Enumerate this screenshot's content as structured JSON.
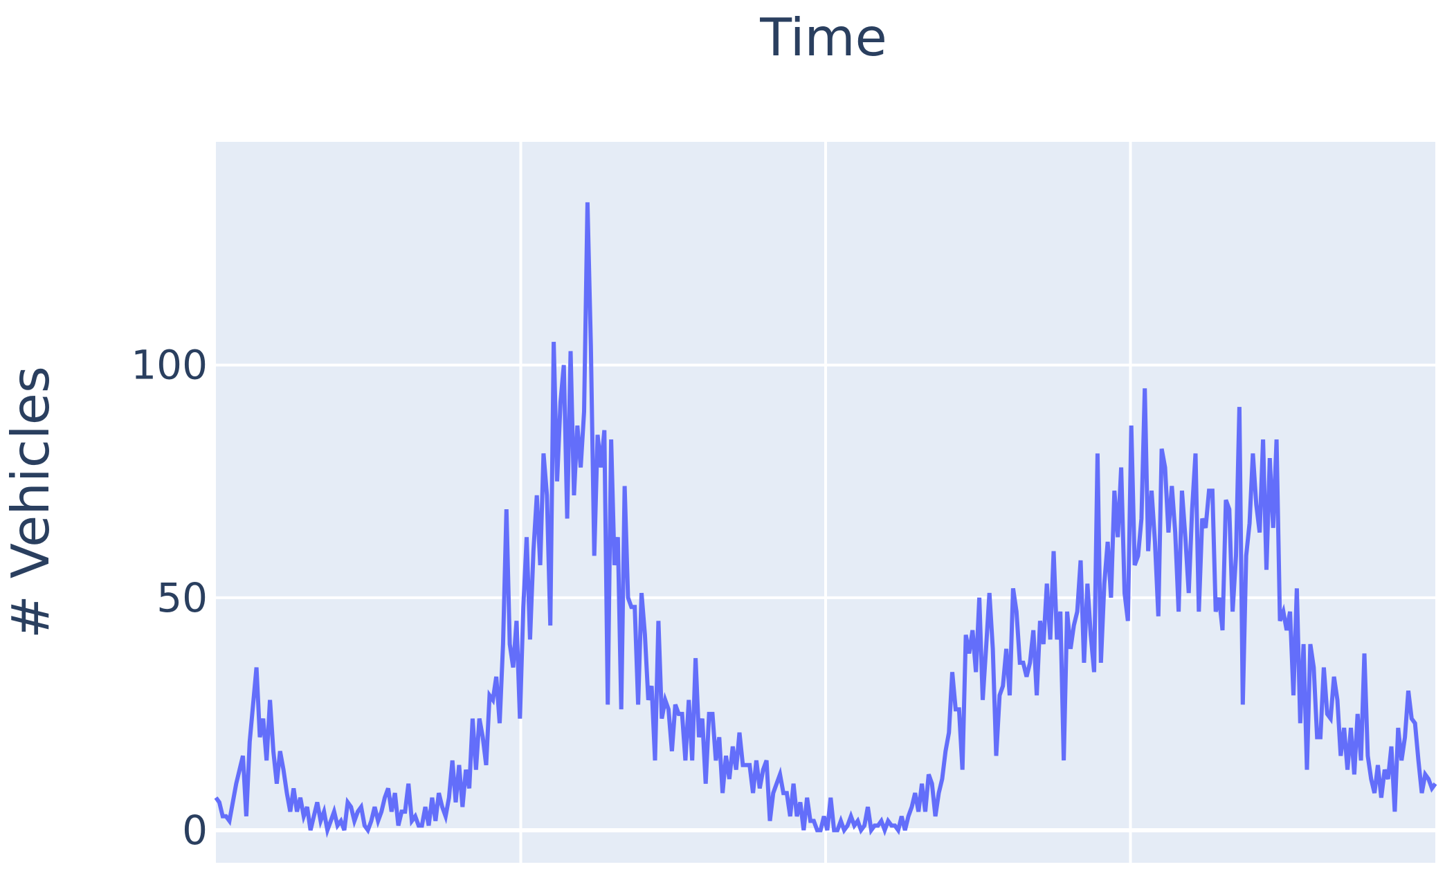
{
  "chart_data": {
    "type": "line",
    "title": "",
    "xlabel": "Time",
    "ylabel": "# Vehicles",
    "x_axis_position": "top",
    "x_tick_labels_shown": false,
    "ylim": [
      -7,
      148
    ],
    "yticks": [
      0,
      50,
      100
    ],
    "ytick_labels": [
      "0",
      "50",
      "100"
    ],
    "grid": true,
    "colors": {
      "line": "#636efa",
      "plot_background": "#e5ecf6",
      "grid": "#ffffff",
      "text": "#2a3f5f"
    },
    "series": [
      {
        "values": [
          7,
          6,
          3,
          3,
          2,
          6,
          10,
          13,
          16,
          3,
          19,
          27,
          35,
          20,
          24,
          15,
          28,
          17,
          10,
          17,
          13,
          8,
          4,
          9,
          4,
          7,
          3,
          5,
          0,
          3,
          6,
          2,
          4,
          0,
          2,
          4,
          1,
          2,
          0,
          6,
          5,
          2,
          4,
          5,
          1,
          0,
          2,
          5,
          2,
          4,
          7,
          9,
          4,
          8,
          1,
          4,
          4,
          10,
          2,
          3,
          1,
          1,
          5,
          1,
          7,
          2,
          8,
          5,
          3,
          7,
          15,
          6,
          14,
          5,
          13,
          9,
          24,
          13,
          24,
          20,
          14,
          29,
          28,
          33,
          23,
          40,
          69,
          40,
          35,
          45,
          24,
          48,
          63,
          41,
          60,
          72,
          57,
          81,
          72,
          44,
          105,
          75,
          92,
          100,
          67,
          103,
          72,
          87,
          78,
          90,
          135,
          104,
          59,
          85,
          78,
          86,
          27,
          84,
          57,
          63,
          26,
          74,
          50,
          48,
          48,
          27,
          51,
          42,
          28,
          31,
          15,
          45,
          24,
          28,
          26,
          17,
          27,
          25,
          25,
          15,
          28,
          15,
          37,
          20,
          24,
          10,
          25,
          25,
          15,
          20,
          8,
          16,
          11,
          18,
          13,
          21,
          14,
          14,
          14,
          8,
          15,
          9,
          13,
          15,
          2,
          8,
          10,
          12,
          8,
          8,
          3,
          10,
          3,
          6,
          0,
          7,
          2,
          2,
          0,
          0,
          3,
          0,
          7,
          0,
          0,
          2,
          0,
          1,
          3,
          1,
          2,
          0,
          1,
          5,
          0,
          1,
          1,
          2,
          0,
          2,
          1,
          1,
          0,
          3,
          0,
          3,
          5,
          8,
          4,
          10,
          4,
          12,
          10,
          3,
          8,
          11,
          17,
          21,
          34,
          26,
          26,
          13,
          42,
          38,
          43,
          34,
          50,
          28,
          39,
          51,
          39,
          16,
          29,
          31,
          39,
          29,
          52,
          47,
          36,
          36,
          33,
          36,
          43,
          29,
          45,
          40,
          53,
          41,
          60,
          41,
          47,
          15,
          47,
          39,
          44,
          47,
          58,
          36,
          53,
          42,
          34,
          81,
          36,
          53,
          62,
          50,
          73,
          63,
          78,
          51,
          45,
          87,
          57,
          59,
          67,
          95,
          60,
          73,
          62,
          46,
          82,
          78,
          64,
          74,
          64,
          47,
          73,
          63,
          51,
          69,
          81,
          47,
          67,
          65,
          73,
          73,
          47,
          50,
          43,
          71,
          69,
          47,
          59,
          91,
          27,
          59,
          66,
          81,
          70,
          64,
          84,
          56,
          80,
          65,
          84,
          45,
          47,
          43,
          47,
          29,
          52,
          23,
          40,
          13,
          40,
          35,
          20,
          20,
          35,
          25,
          24,
          33,
          28,
          16,
          22,
          13,
          22,
          12,
          25,
          15,
          38,
          16,
          11,
          8,
          14,
          7,
          13,
          11,
          18,
          4,
          22,
          15,
          20,
          30,
          24,
          23,
          15,
          8,
          12,
          11,
          9,
          10
        ]
      }
    ]
  }
}
